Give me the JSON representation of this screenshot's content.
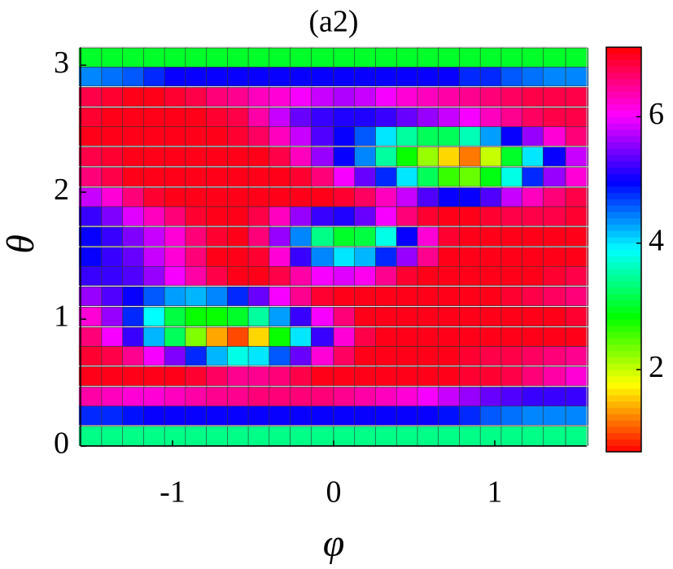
{
  "chart_data": {
    "type": "heatmap",
    "title": "(a2)",
    "x_label": "φ",
    "y_label": "θ",
    "xlim": [
      -1.5708,
      1.5708
    ],
    "ylim": [
      0,
      3.1416
    ],
    "xticks": [
      -1,
      0,
      1
    ],
    "yticks": [
      0,
      1,
      2,
      3
    ],
    "clim": [
      0.7,
      7.1
    ],
    "cticks": [
      2,
      4,
      6
    ],
    "colormap": [
      "#ff0000",
      "#ffff00",
      "#00ff00",
      "#00ffff",
      "#0000ff",
      "#ff00ff",
      "#ff0000"
    ],
    "x": [
      -1.51,
      -1.37,
      -1.24,
      -1.11,
      -0.98,
      -0.85,
      -0.72,
      -0.59,
      -0.46,
      -0.33,
      -0.2,
      -0.07,
      0.07,
      0.2,
      0.33,
      0.46,
      0.59,
      0.72,
      0.85,
      0.98,
      1.11,
      1.24,
      1.37,
      1.51
    ],
    "y": [
      3.06,
      2.91,
      2.75,
      2.59,
      2.44,
      2.28,
      2.12,
      1.96,
      1.81,
      1.65,
      1.49,
      1.34,
      1.18,
      1.02,
      0.86,
      0.71,
      0.55,
      0.39,
      0.24,
      0.08
    ],
    "values": [
      [
        3.0,
        3.0,
        3.0,
        3.0,
        3.0,
        3.0,
        3.0,
        3.0,
        3.0,
        3.0,
        3.0,
        3.0,
        3.0,
        3.0,
        3.0,
        3.0,
        3.0,
        3.0,
        3.0,
        3.0,
        3.0,
        3.0,
        3.0,
        3.0
      ],
      [
        4.4,
        4.5,
        4.6,
        4.8,
        5,
        5,
        5,
        5,
        5,
        5,
        5,
        5,
        5,
        5,
        5,
        5,
        5,
        5,
        4.8,
        4.8,
        4.6,
        4.5,
        4.4,
        4.4
      ],
      [
        6.8,
        6.9,
        7,
        7,
        6.9,
        6.8,
        6.6,
        6.5,
        6.3,
        6.2,
        6,
        5.8,
        5.7,
        5.8,
        6,
        6.2,
        6.3,
        6.4,
        6.5,
        6.6,
        6.7,
        6.8,
        6.8,
        6.8
      ],
      [
        6.9,
        7,
        7,
        7,
        7,
        7,
        6.9,
        6.8,
        6.4,
        5.8,
        5.4,
        5.2,
        5.1,
        5.1,
        5.2,
        5.4,
        5.6,
        5.8,
        6.0,
        6.3,
        6.5,
        6.7,
        6.8,
        6.8
      ],
      [
        7,
        7,
        7,
        7,
        7,
        7,
        7,
        6.9,
        6.7,
        6.3,
        5.8,
        5.3,
        5.0,
        4.6,
        4.0,
        3.5,
        3.2,
        3.2,
        3.6,
        4.3,
        5.0,
        5.6,
        6.2,
        6.6
      ],
      [
        6.8,
        6.9,
        7,
        7,
        7,
        7,
        7,
        7,
        7,
        6.8,
        6.3,
        5.6,
        5.0,
        4.4,
        3.5,
        2.8,
        2.2,
        1.6,
        1.2,
        2.0,
        3.0,
        4.0,
        5.0,
        5.8
      ],
      [
        6.6,
        6.8,
        7,
        7,
        7,
        7,
        7,
        7,
        7,
        7,
        6.9,
        6.6,
        6.0,
        5.4,
        4.8,
        4.0,
        3.2,
        2.6,
        2.4,
        2.9,
        3.8,
        4.8,
        5.6,
        6.2
      ],
      [
        5.8,
        6.2,
        6.6,
        6.9,
        7,
        7,
        7,
        7,
        7,
        7,
        7,
        7,
        6.9,
        6.7,
        6.3,
        5.8,
        5.3,
        5.0,
        5.0,
        5.3,
        5.8,
        6.3,
        6.6,
        6.8
      ],
      [
        5.2,
        5.5,
        5.9,
        6.3,
        6.6,
        6.9,
        7,
        7,
        6.8,
        6.3,
        5.6,
        5.2,
        5.1,
        5.4,
        6.0,
        6.6,
        6.9,
        7,
        7,
        6.9,
        6.8,
        6.8,
        6.8,
        6.9
      ],
      [
        5.0,
        5.2,
        5.5,
        5.8,
        6.2,
        6.6,
        6.9,
        7,
        6.6,
        5.6,
        4.4,
        3.4,
        3.0,
        3.1,
        3.8,
        5.0,
        6.2,
        6.9,
        7,
        7,
        7,
        7,
        7,
        7
      ],
      [
        5.0,
        5.2,
        5.4,
        5.8,
        6.2,
        6.6,
        7,
        7,
        6.9,
        6.2,
        5.2,
        4.4,
        4.0,
        4.2,
        4.8,
        5.6,
        6.5,
        7,
        7,
        7,
        7,
        7,
        7,
        7
      ],
      [
        5.2,
        5.2,
        5.3,
        5.6,
        6.0,
        6.4,
        6.8,
        7,
        7,
        6.8,
        6.4,
        6.0,
        5.9,
        6.1,
        6.5,
        6.9,
        7,
        7,
        7,
        7,
        7,
        7,
        6.9,
        6.8
      ],
      [
        5.6,
        5.3,
        5.0,
        4.6,
        4.3,
        4.2,
        4.4,
        4.8,
        5.4,
        6.0,
        6.5,
        6.9,
        7,
        7,
        7,
        7,
        7,
        7,
        7,
        7,
        6.9,
        6.8,
        6.7,
        6.6
      ],
      [
        6.2,
        5.6,
        4.8,
        3.9,
        3.1,
        2.8,
        2.8,
        3.0,
        3.5,
        4.3,
        5.2,
        6.0,
        6.6,
        7,
        7,
        7,
        7,
        7,
        7,
        7,
        7,
        7,
        7,
        6.9
      ],
      [
        6.6,
        6.0,
        5.2,
        4.2,
        3.2,
        2.3,
        1.4,
        1.0,
        1.6,
        2.8,
        4.0,
        5.2,
        6.2,
        6.8,
        7,
        7,
        7,
        7,
        7,
        7,
        7,
        7,
        7,
        7
      ],
      [
        6.9,
        6.8,
        6.5,
        6.0,
        5.5,
        4.8,
        4.2,
        3.8,
        4.0,
        4.6,
        5.4,
        6.2,
        6.7,
        7,
        7,
        7,
        7,
        7,
        6.9,
        6.8,
        6.8,
        6.7,
        6.6,
        6.5
      ],
      [
        7,
        7,
        7,
        7,
        7,
        6.9,
        6.7,
        6.5,
        6.5,
        6.6,
        6.8,
        7,
        7,
        7,
        7,
        7,
        7,
        7,
        6.9,
        6.9,
        6.8,
        6.6,
        6.4,
        6.2
      ],
      [
        6.4,
        6.3,
        6.2,
        6.2,
        6.3,
        6.4,
        6.5,
        6.5,
        6.6,
        6.6,
        6.6,
        6.6,
        6.5,
        6.4,
        6.3,
        6.2,
        6.0,
        5.8,
        5.6,
        5.4,
        5.3,
        5.2,
        5.2,
        5.2
      ],
      [
        4.8,
        4.8,
        4.9,
        5,
        5,
        5,
        5,
        5,
        5,
        5,
        5,
        5,
        5,
        5,
        5,
        5,
        5,
        4.9,
        4.8,
        4.6,
        4.5,
        4.4,
        4.4,
        4.4
      ],
      [
        3.4,
        3.4,
        3.4,
        3.4,
        3.4,
        3.4,
        3.4,
        3.4,
        3.4,
        3.4,
        3.4,
        3.4,
        3.4,
        3.4,
        3.4,
        3.4,
        3.4,
        3.4,
        3.4,
        3.4,
        3.4,
        3.4,
        3.4,
        3.4
      ]
    ]
  }
}
